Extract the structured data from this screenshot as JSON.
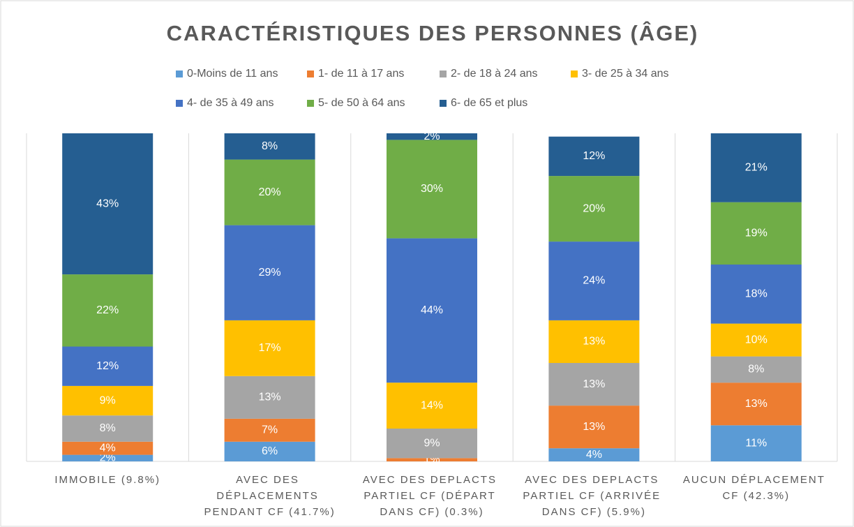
{
  "chart_data": {
    "type": "stacked_bar_100",
    "title": "CARACTÉRISTIQUES DES PERSONNES (ÂGE)",
    "categories": [
      "IMMOBILE (9.8%)",
      "AVEC DES DÉPLACEMENTS PENDANT CF (41.7%)",
      "AVEC DES DEPLACTS PARTIEL CF (DÉPART DANS CF) (0.3%)",
      "AVEC DES DEPLACTS PARTIEL CF (ARRIVÉE DANS CF) (5.9%)",
      "AUCUN DÉPLACEMENT CF (42.3%)"
    ],
    "series": [
      {
        "name": "0-Moins de 11 ans",
        "color": "#5b9bd5",
        "values": [
          2,
          6,
          0,
          4,
          11
        ],
        "value_labels": [
          "2%",
          "6%",
          "0%",
          "4%",
          "11%"
        ]
      },
      {
        "name": "1- de 11 à 17 ans",
        "color": "#ed7d31",
        "values": [
          4,
          7,
          1,
          13,
          13
        ],
        "value_labels": [
          "4%",
          "7%",
          "1%",
          "13%",
          "13%"
        ]
      },
      {
        "name": "2- de 18 à 24 ans",
        "color": "#a5a5a5",
        "values": [
          8,
          13,
          9,
          13,
          8
        ],
        "value_labels": [
          "8%",
          "13%",
          "9%",
          "13%",
          "8%"
        ]
      },
      {
        "name": "3- de 25 à 34 ans",
        "color": "#ffc000",
        "values": [
          9,
          17,
          14,
          13,
          10
        ],
        "value_labels": [
          "9%",
          "17%",
          "14%",
          "13%",
          "10%"
        ]
      },
      {
        "name": "4- de 35 à 49 ans",
        "color": "#4472c4",
        "values": [
          12,
          29,
          44,
          24,
          18
        ],
        "value_labels": [
          "12%",
          "29%",
          "44%",
          "24%",
          "18%"
        ]
      },
      {
        "name": "5- de 50 à 64 ans",
        "color": "#70ad47",
        "values": [
          22,
          20,
          30,
          20,
          19
        ],
        "value_labels": [
          "22%",
          "20%",
          "30%",
          "20%",
          "19%"
        ]
      },
      {
        "name": "6- de 65 et plus",
        "color": "#255e91",
        "values": [
          43,
          8,
          2,
          12,
          21
        ],
        "value_labels": [
          "43%",
          "8%",
          "2%",
          "12%",
          "21%"
        ]
      }
    ],
    "legend": "top"
  }
}
